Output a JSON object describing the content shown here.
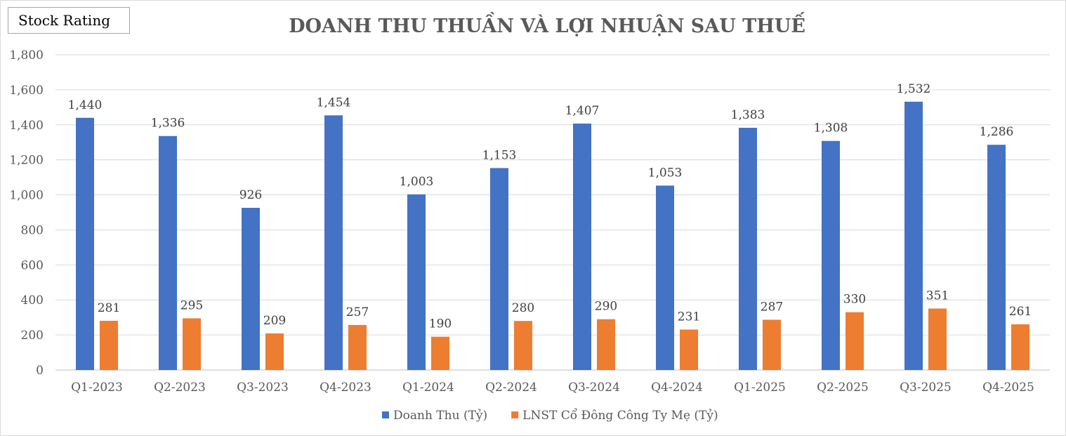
{
  "badge": {
    "label": "Stock Rating"
  },
  "chart_data": {
    "type": "bar",
    "title": "DOANH THU THUẦN VÀ LỢI NHUẬN SAU THUẾ",
    "categories": [
      "Q1-2023",
      "Q2-2023",
      "Q3-2023",
      "Q4-2023",
      "Q1-2024",
      "Q2-2024",
      "Q3-2024",
      "Q4-2024",
      "Q1-2025",
      "Q2-2025",
      "Q3-2025",
      "Q4-2025"
    ],
    "series": [
      {
        "name": "Doanh Thu (Tỷ)",
        "color": "#4472C4",
        "values": [
          1440,
          1336,
          926,
          1454,
          1003,
          1153,
          1407,
          1053,
          1383,
          1308,
          1532,
          1286
        ]
      },
      {
        "name": "LNST Cổ Đông Công Ty Mẹ (Tỷ)",
        "color": "#ED7D31",
        "values": [
          281,
          295,
          209,
          257,
          190,
          280,
          290,
          231,
          287,
          330,
          351,
          261
        ]
      }
    ],
    "ylim": [
      0,
      1800
    ],
    "yticks": [
      0,
      200,
      400,
      600,
      800,
      1000,
      1200,
      1400,
      1600,
      1800
    ],
    "grid": true,
    "legend_position": "bottom",
    "xlabel": "",
    "ylabel": ""
  }
}
